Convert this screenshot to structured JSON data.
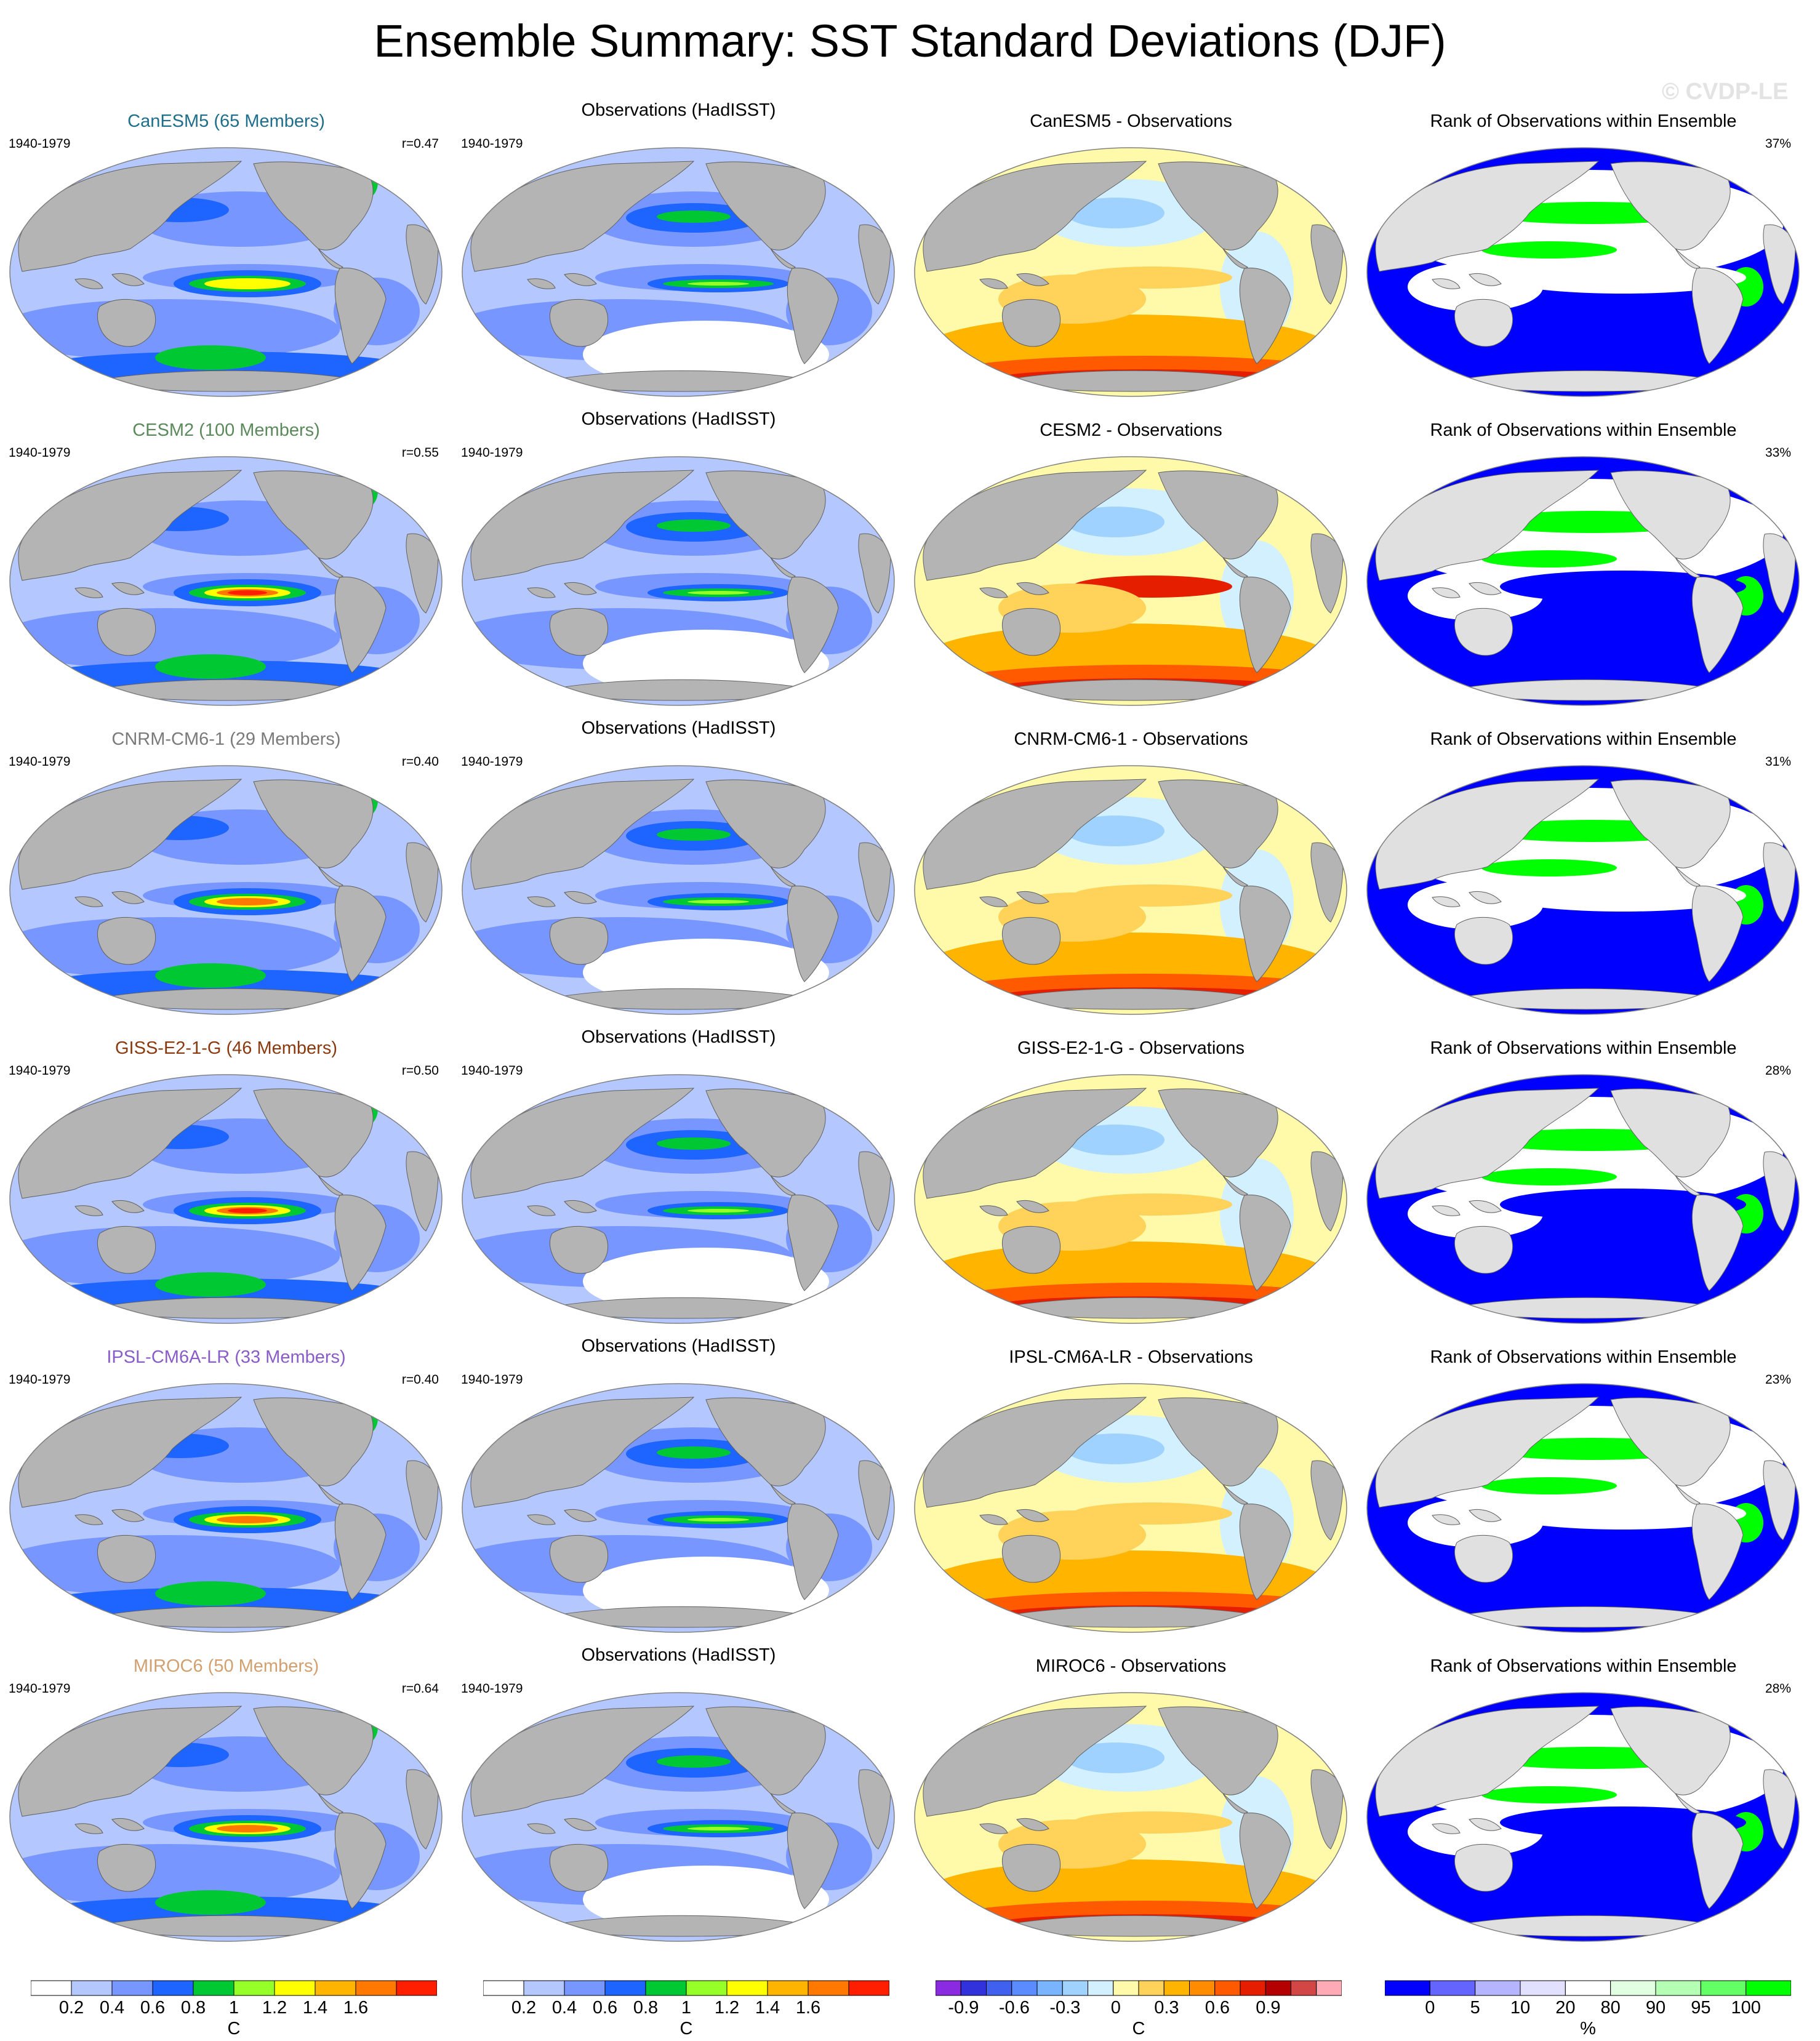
{
  "title": "Ensemble Summary: SST Standard Deviations (DJF)",
  "watermark": "© CVDP-LE",
  "colors": {
    "land": "#b4b4b4",
    "land_rank": "#e0e0e0",
    "sd_levels": [
      "#ffffff",
      "#b4c8ff",
      "#7896ff",
      "#1e64ff",
      "#00c832",
      "#96ff28",
      "#ffff00",
      "#ffb400",
      "#ff7800",
      "#ff1e00"
    ],
    "diff_levels": [
      "#8a2be2",
      "#3232dc",
      "#4060f0",
      "#5a8cff",
      "#78b4ff",
      "#a0d2ff",
      "#d2f0ff",
      "#fffaaa",
      "#ffd25a",
      "#ffb400",
      "#ff8c00",
      "#ff5a00",
      "#e61e00",
      "#b40000",
      "#d24646",
      "#ffaab4"
    ],
    "rank_levels": [
      "#0000ff",
      "#6464ff",
      "#b4b4ff",
      "#e1e1ff",
      "#ffffff",
      "#e1ffe1",
      "#b4ffb4",
      "#64ff64",
      "#00ff00"
    ]
  },
  "columns": [
    {
      "kind": "model"
    },
    {
      "kind": "obs",
      "title": "Observations (HadISST)"
    },
    {
      "kind": "diff"
    },
    {
      "kind": "rank",
      "title": "Rank of Observations within Ensemble"
    }
  ],
  "rows": [
    {
      "model_title": "CanESM5 (65 Members)",
      "title_color": "#1f6e8c",
      "years": "1940-1979",
      "r": "r=0.47",
      "obs_years": "1940-1979",
      "diff_title": "CanESM5 - Observations",
      "rank_pct": "37%"
    },
    {
      "model_title": "CESM2 (100 Members)",
      "title_color": "#5a8a5a",
      "years": "1940-1979",
      "r": "r=0.55",
      "obs_years": "1940-1979",
      "diff_title": "CESM2 - Observations",
      "rank_pct": "33%"
    },
    {
      "model_title": "CNRM-CM6-1 (29 Members)",
      "title_color": "#7a7a7a",
      "years": "1940-1979",
      "r": "r=0.40",
      "obs_years": "1940-1979",
      "diff_title": "CNRM-CM6-1 - Observations",
      "rank_pct": "31%"
    },
    {
      "model_title": "GISS-E2-1-G (46 Members)",
      "title_color": "#8b3a0f",
      "years": "1940-1979",
      "r": "r=0.50",
      "obs_years": "1940-1979",
      "diff_title": "GISS-E2-1-G - Observations",
      "rank_pct": "28%"
    },
    {
      "model_title": "IPSL-CM6A-LR (33 Members)",
      "title_color": "#8a5cc8",
      "years": "1940-1979",
      "r": "r=0.40",
      "obs_years": "1940-1979",
      "diff_title": "IPSL-CM6A-LR - Observations",
      "rank_pct": "23%"
    },
    {
      "model_title": "MIROC6 (50 Members)",
      "title_color": "#d2a070",
      "years": "1940-1979",
      "r": "r=0.64",
      "obs_years": "1940-1979",
      "diff_title": "MIROC6 - Observations",
      "rank_pct": "28%"
    }
  ],
  "colorbars": {
    "sd": {
      "ticks": [
        "0.2",
        "0.4",
        "0.6",
        "0.8",
        "1",
        "1.2",
        "1.4",
        "1.6"
      ],
      "units": "C"
    },
    "sd_obs": {
      "ticks": [
        "0.2",
        "0.4",
        "0.6",
        "0.8",
        "1",
        "1.2",
        "1.4",
        "1.6"
      ],
      "units": "C"
    },
    "diff": {
      "ticks": [
        "-0.9",
        "-0.6",
        "-0.3",
        "0",
        "0.3",
        "0.6",
        "0.9"
      ],
      "units": "C"
    },
    "rank": {
      "ticks": [
        "0",
        "5",
        "10",
        "20",
        "80",
        "90",
        "95",
        "100"
      ],
      "units": "%"
    }
  }
}
